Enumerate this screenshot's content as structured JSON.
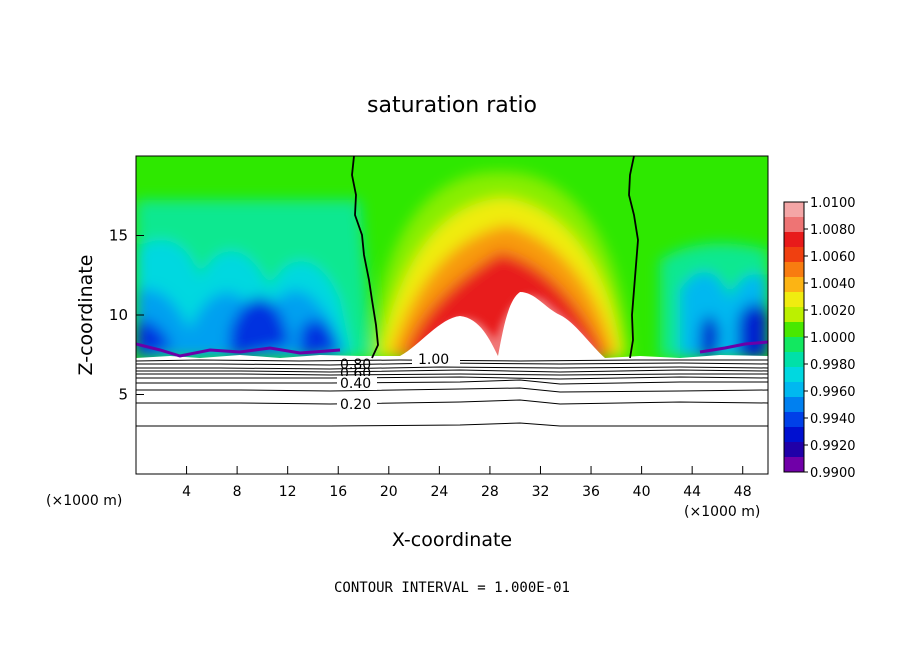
{
  "chart_data": {
    "type": "heatmap",
    "title": "saturation ratio",
    "xlabel": "X-coordinate",
    "ylabel": "Z-coordinate",
    "x_unit_label_left": "(×1000 m)",
    "x_unit_label_right": "(×1000 m)",
    "footer": "CONTOUR INTERVAL = 1.000E-01",
    "xlim": [
      0,
      50
    ],
    "ylim": [
      0,
      20
    ],
    "x_ticks": [
      4,
      8,
      12,
      16,
      20,
      24,
      28,
      32,
      36,
      40,
      44,
      48
    ],
    "y_ticks": [
      5,
      10,
      15
    ],
    "colorbar": {
      "range": [
        0.99,
        1.01
      ],
      "labels": [
        "1.0100",
        "1.0080",
        "1.0060",
        "1.0040",
        "1.0020",
        "1.0000",
        "0.9980",
        "0.9960",
        "0.9940",
        "0.9920",
        "0.9900"
      ],
      "colors": [
        "#f4a6a6",
        "#ee7474",
        "#e81a1a",
        "#f04010",
        "#f87c10",
        "#fcb414",
        "#f0ec10",
        "#bcf000",
        "#48e800",
        "#12e860",
        "#00e0a8",
        "#00d8e0",
        "#00b8f0",
        "#0080f0",
        "#0040e8",
        "#0010d0",
        "#2000a8",
        "#7000a8"
      ]
    },
    "contour_labels": [
      {
        "text": "1.00",
        "x": 22,
        "z": 7.3
      },
      {
        "text": "0.80",
        "x": 17.5,
        "z": 7.2
      },
      {
        "text": "0.60",
        "x": 17.5,
        "z": 6.8
      },
      {
        "text": "0.40",
        "x": 17.5,
        "z": 5.8
      },
      {
        "text": "0.20",
        "x": 17.5,
        "z": 4.3
      }
    ],
    "saturation_line_x": [
      18.5,
      39
    ]
  }
}
